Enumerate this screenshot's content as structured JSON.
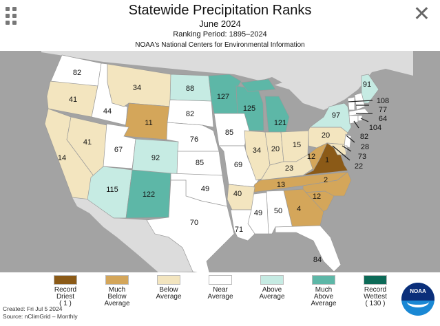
{
  "header": {
    "title": "Statewide Precipitation Ranks",
    "subtitle": "June 2024",
    "ranking_period": "Ranking Period: 1895–2024",
    "agency": "NOAA's National Centers for Environmental Information"
  },
  "icons": {
    "menu": "grid-icon",
    "close": "close-icon"
  },
  "legend": [
    {
      "key": "record_dry",
      "lines": [
        "Record",
        "Driest",
        "( 1 )"
      ],
      "color": "#8b5a17"
    },
    {
      "key": "much_below",
      "lines": [
        "Much",
        "Below",
        "Average"
      ],
      "color": "#d4a65a"
    },
    {
      "key": "below",
      "lines": [
        "Below",
        "Average",
        ""
      ],
      "color": "#f3e5bf"
    },
    {
      "key": "near",
      "lines": [
        "Near",
        "Average",
        ""
      ],
      "color": "#ffffff"
    },
    {
      "key": "above",
      "lines": [
        "Above",
        "Average",
        ""
      ],
      "color": "#c6ebe3"
    },
    {
      "key": "much_above",
      "lines": [
        "Much",
        "Above",
        "Average"
      ],
      "color": "#5db7a7"
    },
    {
      "key": "record_wet",
      "lines": [
        "Record",
        "Wettest",
        "( 130 )"
      ],
      "color": "#0c6a57"
    }
  ],
  "footer": {
    "created": "Created: Fri Jul  5 2024",
    "source": "Source: nClimGrid – Monthly"
  },
  "logo_text": "NOAA",
  "states": {
    "WA": {
      "rank": 82,
      "cat": "near"
    },
    "OR": {
      "rank": 41,
      "cat": "below"
    },
    "CA": {
      "rank": 14,
      "cat": "below"
    },
    "NV": {
      "rank": 41,
      "cat": "below"
    },
    "ID": {
      "rank": 44,
      "cat": "near"
    },
    "MT": {
      "rank": 34,
      "cat": "below"
    },
    "WY": {
      "rank": 11,
      "cat": "much_below"
    },
    "UT": {
      "rank": 67,
      "cat": "near"
    },
    "CO": {
      "rank": 92,
      "cat": "above"
    },
    "AZ": {
      "rank": 115,
      "cat": "above"
    },
    "NM": {
      "rank": 122,
      "cat": "much_above"
    },
    "ND": {
      "rank": 88,
      "cat": "above"
    },
    "SD": {
      "rank": 82,
      "cat": "near"
    },
    "NE": {
      "rank": 76,
      "cat": "near"
    },
    "KS": {
      "rank": 85,
      "cat": "near"
    },
    "OK": {
      "rank": 49,
      "cat": "near"
    },
    "TX": {
      "rank": 70,
      "cat": "near"
    },
    "MN": {
      "rank": 127,
      "cat": "much_above"
    },
    "IA": {
      "rank": 85,
      "cat": "near"
    },
    "MO": {
      "rank": 69,
      "cat": "near"
    },
    "AR": {
      "rank": 40,
      "cat": "below"
    },
    "LA": {
      "rank": 71,
      "cat": "near"
    },
    "WI": {
      "rank": 125,
      "cat": "much_above"
    },
    "IL": {
      "rank": 34,
      "cat": "below"
    },
    "MI": {
      "rank": 121,
      "cat": "much_above"
    },
    "IN": {
      "rank": 20,
      "cat": "below"
    },
    "OH": {
      "rank": 15,
      "cat": "below"
    },
    "KY": {
      "rank": 23,
      "cat": "below"
    },
    "TN": {
      "rank": 13,
      "cat": "much_below"
    },
    "MS": {
      "rank": 49,
      "cat": "near"
    },
    "AL": {
      "rank": 50,
      "cat": "near"
    },
    "GA": {
      "rank": 4,
      "cat": "much_below"
    },
    "FL": {
      "rank": 84,
      "cat": "near"
    },
    "SC": {
      "rank": 12,
      "cat": "much_below"
    },
    "NC": {
      "rank": 2,
      "cat": "much_below"
    },
    "VA": {
      "rank": 1,
      "cat": "record_dry"
    },
    "WV": {
      "rank": 12,
      "cat": "much_below"
    },
    "PA": {
      "rank": 20,
      "cat": "below"
    },
    "NY": {
      "rank": 97,
      "cat": "above"
    },
    "ME": {
      "rank": 91,
      "cat": "above"
    },
    "VT": {
      "rank": 108,
      "cat": "near"
    },
    "NH": {
      "rank": 77,
      "cat": "near"
    },
    "MA": {
      "rank": 64,
      "cat": "near"
    },
    "RI": {
      "rank": 104,
      "cat": "near"
    },
    "CT": {
      "rank": 82,
      "cat": "near"
    },
    "NJ": {
      "rank": 28,
      "cat": "near"
    },
    "DE": {
      "rank": 73,
      "cat": "near"
    },
    "MD": {
      "rank": 22,
      "cat": "below"
    }
  }
}
